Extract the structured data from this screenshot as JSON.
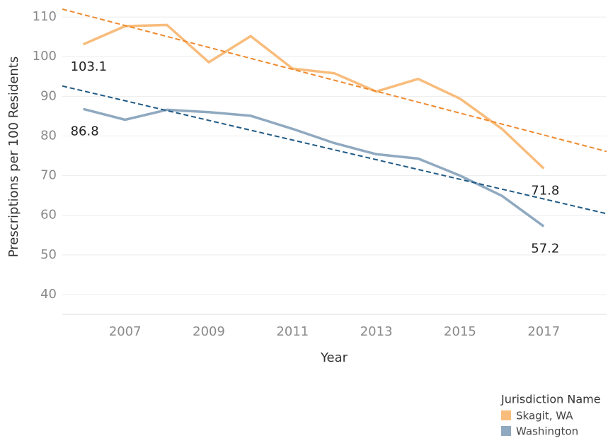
{
  "chart_data": {
    "type": "line",
    "x_label": "Year",
    "y_label": "Prescriptions per 100 Residents",
    "x": [
      2006,
      2007,
      2008,
      2009,
      2010,
      2011,
      2012,
      2013,
      2014,
      2015,
      2016,
      2017
    ],
    "series": [
      {
        "name": "Skagit, WA",
        "color": "#f8bc7c",
        "values": [
          103.1,
          107.7,
          108.0,
          98.6,
          105.2,
          97.0,
          95.8,
          91.2,
          94.4,
          89.4,
          81.8,
          71.8
        ]
      },
      {
        "name": "Washington",
        "color": "#8fa9c0",
        "values": [
          86.8,
          84.1,
          86.6,
          86.0,
          85.1,
          81.8,
          78.2,
          75.4,
          74.3,
          70.0,
          64.9,
          57.2
        ]
      }
    ],
    "trendlines": [
      {
        "color": "#ef8a2e",
        "x": [
          2005.5,
          2018.5
        ],
        "values": [
          112.0,
          76.1
        ]
      },
      {
        "color": "#1f5a85",
        "x": [
          2005.5,
          2018.5
        ],
        "values": [
          92.6,
          60.4
        ]
      }
    ],
    "legend_title": "Jurisdiction Name",
    "xlim": [
      2005.5,
      2018.5
    ],
    "xticks": [
      2007,
      2009,
      2011,
      2013,
      2015,
      2017
    ],
    "ylim": [
      35,
      114.3
    ],
    "yticks": [
      40,
      50,
      60,
      70,
      80,
      90,
      100,
      110
    ],
    "grid": true
  }
}
